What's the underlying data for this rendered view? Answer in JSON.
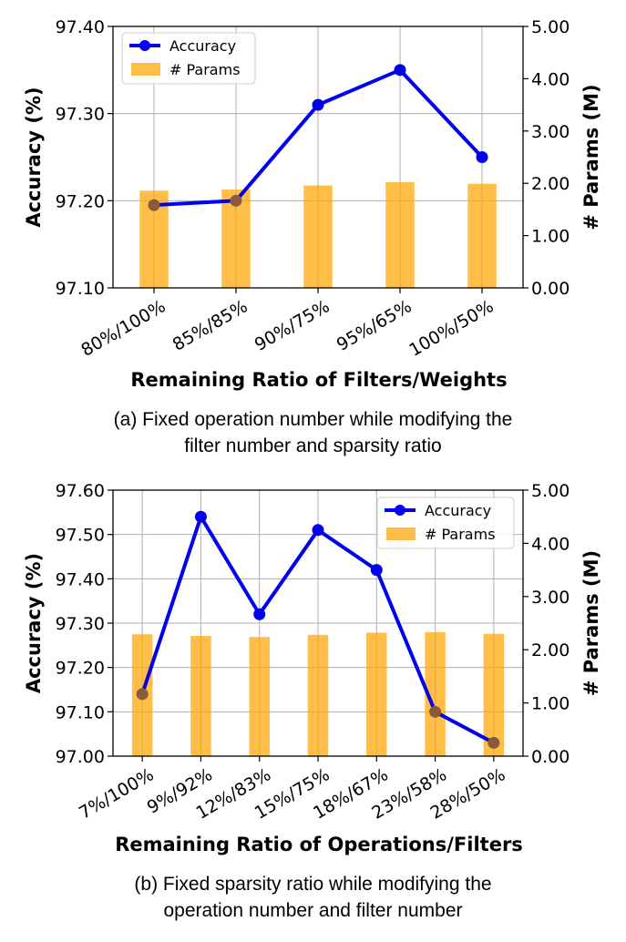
{
  "chart_data": [
    {
      "type": "bar+line",
      "caption_line1": "(a) Fixed operation number while modifying the",
      "caption_line2": "filter number and sparsity ratio",
      "xlabel": "Remaining Ratio of Filters/Weights",
      "ylabel_left": "Accuracy (%)",
      "ylabel_right": "# Params (M)",
      "categories": [
        "80%/100%",
        "85%/85%",
        "90%/75%",
        "95%/65%",
        "100%/50%"
      ],
      "ylim_left": [
        97.1,
        97.4
      ],
      "yticks_left": [
        "97.10",
        "97.20",
        "97.30",
        "97.40"
      ],
      "ylim_right": [
        0,
        5
      ],
      "yticks_right": [
        "0.00",
        "1.00",
        "2.00",
        "3.00",
        "4.00",
        "5.00"
      ],
      "series": [
        {
          "name": "Accuracy",
          "axis": "left",
          "kind": "line",
          "color": "#0000ee",
          "values": [
            97.195,
            97.2,
            97.31,
            97.35,
            97.25
          ]
        },
        {
          "name": "# Params",
          "axis": "right",
          "kind": "bar",
          "color": "#ffa500",
          "values": [
            1.86,
            1.88,
            1.96,
            2.02,
            1.99
          ]
        }
      ],
      "legend": {
        "position": "top-left",
        "entries": [
          "Accuracy",
          "# Params"
        ]
      },
      "grid": true
    },
    {
      "type": "bar+line",
      "caption_line1": "(b) Fixed sparsity ratio while modifying the",
      "caption_line2": "operation number and filter number",
      "xlabel": "Remaining Ratio of Operations/Filters",
      "ylabel_left": "Accuracy (%)",
      "ylabel_right": "# Params (M)",
      "categories": [
        "7%/100%",
        "9%/92%",
        "12%/83%",
        "15%/75%",
        "18%/67%",
        "23%/58%",
        "28%/50%"
      ],
      "ylim_left": [
        97.0,
        97.6
      ],
      "yticks_left": [
        "97.00",
        "97.10",
        "97.20",
        "97.30",
        "97.40",
        "97.50",
        "97.60"
      ],
      "ylim_right": [
        0,
        5
      ],
      "yticks_right": [
        "0.00",
        "1.00",
        "2.00",
        "3.00",
        "4.00",
        "5.00"
      ],
      "series": [
        {
          "name": "Accuracy",
          "axis": "left",
          "kind": "line",
          "color": "#0000ee",
          "values": [
            97.14,
            97.54,
            97.32,
            97.51,
            97.42,
            97.1,
            97.03
          ]
        },
        {
          "name": "# Params",
          "axis": "right",
          "kind": "bar",
          "color": "#ffa500",
          "values": [
            2.29,
            2.26,
            2.24,
            2.28,
            2.32,
            2.33,
            2.3
          ]
        }
      ],
      "legend": {
        "position": "top-right",
        "entries": [
          "Accuracy",
          "# Params"
        ]
      },
      "grid": true
    }
  ]
}
